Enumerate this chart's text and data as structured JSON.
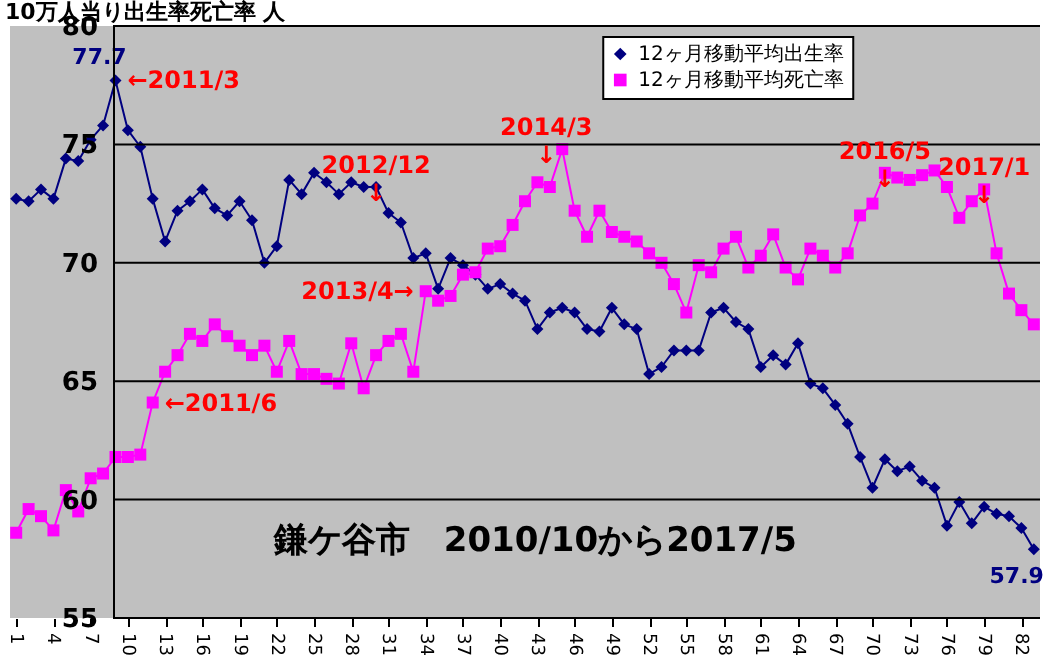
{
  "chart_data": {
    "type": "line",
    "ylabel": "10万人当り出生率死亡率 人",
    "x": [
      1,
      2,
      3,
      4,
      5,
      6,
      7,
      8,
      9,
      10,
      11,
      12,
      13,
      14,
      15,
      16,
      17,
      18,
      19,
      20,
      21,
      22,
      23,
      24,
      25,
      26,
      27,
      28,
      29,
      30,
      31,
      32,
      33,
      34,
      35,
      36,
      37,
      38,
      39,
      40,
      41,
      42,
      43,
      44,
      45,
      46,
      47,
      48,
      49,
      50,
      51,
      52,
      53,
      54,
      55,
      56,
      57,
      58,
      59,
      60,
      61,
      62,
      63,
      64,
      65,
      66,
      67,
      68,
      69,
      70,
      71,
      72,
      73,
      74,
      75,
      76,
      77,
      78,
      79,
      80,
      81,
      82,
      83
    ],
    "xlim": [
      0.5,
      83.5
    ],
    "xticks": [
      1,
      4,
      7,
      10,
      13,
      16,
      19,
      22,
      25,
      28,
      31,
      34,
      37,
      40,
      43,
      46,
      49,
      52,
      55,
      58,
      61,
      64,
      67,
      70,
      73,
      76,
      79,
      82
    ],
    "ylim": [
      55,
      80
    ],
    "yticks": [
      55,
      60,
      65,
      70,
      75,
      80
    ],
    "series": [
      {
        "name": "12ヶ月移動平均出生率",
        "color": "#000080",
        "marker": "diamond",
        "values": [
          72.7,
          72.6,
          73.1,
          72.7,
          74.4,
          74.3,
          75.2,
          75.8,
          77.7,
          75.6,
          74.9,
          72.7,
          70.9,
          72.2,
          72.6,
          73.1,
          72.3,
          72.0,
          72.6,
          71.8,
          70.0,
          70.7,
          73.5,
          72.9,
          73.8,
          73.4,
          72.9,
          73.4,
          73.2,
          73.2,
          72.1,
          71.7,
          70.2,
          70.4,
          68.9,
          70.2,
          69.9,
          69.5,
          68.9,
          69.1,
          68.7,
          68.4,
          67.2,
          67.9,
          68.1,
          67.9,
          67.2,
          67.1,
          68.1,
          67.4,
          67.2,
          65.3,
          65.6,
          66.3,
          66.3,
          66.3,
          67.9,
          68.1,
          67.5,
          67.2,
          65.6,
          66.1,
          65.7,
          66.6,
          64.9,
          64.7,
          64.0,
          63.2,
          61.8,
          60.5,
          61.7,
          61.2,
          61.4,
          60.8,
          60.5,
          58.9,
          59.9,
          59.0,
          59.7,
          59.4,
          59.3,
          58.8,
          57.9
        ],
        "value_labels": [
          null,
          null,
          null,
          null,
          null,
          null,
          null,
          null,
          "77.7",
          null,
          null,
          null,
          null,
          null,
          null,
          null,
          null,
          null,
          null,
          null,
          null,
          null,
          null,
          null,
          null,
          null,
          null,
          null,
          null,
          null,
          null,
          null,
          null,
          null,
          null,
          null,
          null,
          null,
          null,
          null,
          null,
          null,
          null,
          null,
          null,
          null,
          null,
          null,
          null,
          null,
          null,
          null,
          null,
          null,
          null,
          null,
          null,
          null,
          null,
          null,
          null,
          null,
          null,
          null,
          null,
          null,
          null,
          null,
          null,
          null,
          null,
          null,
          null,
          null,
          null,
          null,
          null,
          null,
          null,
          null,
          null,
          null,
          "57.9"
        ]
      },
      {
        "name": "12ヶ月移動平均死亡率",
        "color": "#ff00ff",
        "marker": "square",
        "values": [
          58.6,
          59.6,
          59.3,
          58.7,
          60.4,
          59.5,
          60.9,
          61.1,
          61.8,
          61.8,
          61.9,
          64.1,
          65.4,
          66.1,
          67.0,
          66.7,
          67.4,
          66.9,
          66.5,
          66.1,
          66.5,
          65.4,
          66.7,
          65.3,
          65.3,
          65.1,
          64.9,
          66.6,
          64.7,
          66.1,
          66.7,
          67.0,
          65.4,
          68.8,
          68.4,
          68.6,
          69.5,
          69.6,
          70.6,
          70.7,
          71.6,
          72.6,
          73.4,
          73.2,
          74.8,
          72.2,
          71.1,
          72.2,
          71.3,
          71.1,
          70.9,
          70.4,
          70.0,
          69.1,
          67.9,
          69.9,
          69.6,
          70.6,
          71.1,
          69.8,
          70.3,
          71.2,
          69.8,
          69.3,
          70.6,
          70.3,
          69.8,
          70.4,
          72.0,
          72.5,
          73.8,
          73.6,
          73.5,
          73.7,
          73.9,
          73.2,
          71.9,
          72.6,
          73.1,
          70.4,
          68.7,
          68.0,
          67.4
        ]
      }
    ],
    "annotations": [
      {
        "text": "←2011/3",
        "x": 9,
        "y": 77.7
      },
      {
        "text": "2012/12\n↓",
        "x": 30,
        "y": 73.2
      },
      {
        "text": "2013/4→",
        "x": 34,
        "y": 68.8
      },
      {
        "text": "←2011/6",
        "x": 12,
        "y": 64.1
      },
      {
        "text": "2014/3\n↓",
        "x": 45,
        "y": 74.8
      },
      {
        "text": "2016/5\n↓",
        "x": 71,
        "y": 73.8
      },
      {
        "text": "2017/1\n↓",
        "x": 79,
        "y": 73.1
      },
      "鎌ケ谷市　2010/10から2017/5"
    ],
    "grid": "y",
    "legend": "top right"
  }
}
